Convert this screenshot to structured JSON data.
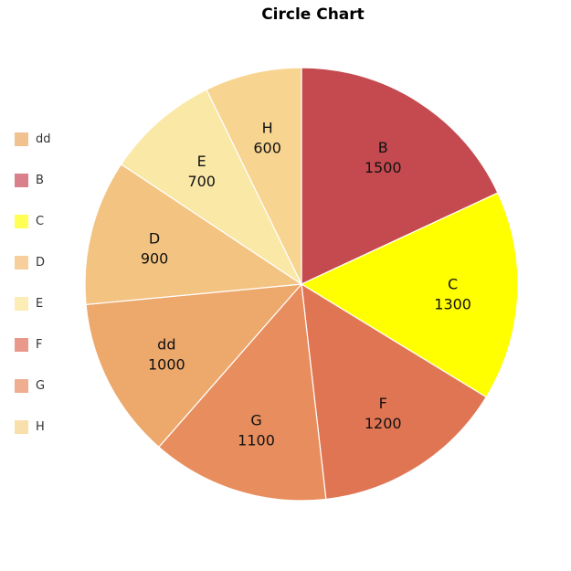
{
  "chart_data": {
    "type": "pie",
    "title": "Circle Chart",
    "categories": [
      "B",
      "C",
      "F",
      "G",
      "dd",
      "D",
      "E",
      "H"
    ],
    "values": [
      1500,
      1300,
      1200,
      1100,
      1000,
      900,
      700,
      600
    ],
    "colors": [
      "#c44a50",
      "#ffff00",
      "#e07553",
      "#e88e5e",
      "#eda86c",
      "#f3c382",
      "#fae8a6",
      "#f7d490"
    ],
    "legend": {
      "position": "left",
      "items": [
        {
          "label": "dd",
          "color": "#f2c190"
        },
        {
          "label": "B",
          "color": "#d9808a"
        },
        {
          "label": "C",
          "color": "#ffff55"
        },
        {
          "label": "D",
          "color": "#f6cf9d"
        },
        {
          "label": "E",
          "color": "#fbedb5"
        },
        {
          "label": "F",
          "color": "#e9998a"
        },
        {
          "label": "G",
          "color": "#efae8f"
        },
        {
          "label": "H",
          "color": "#f9dfab"
        }
      ]
    }
  }
}
